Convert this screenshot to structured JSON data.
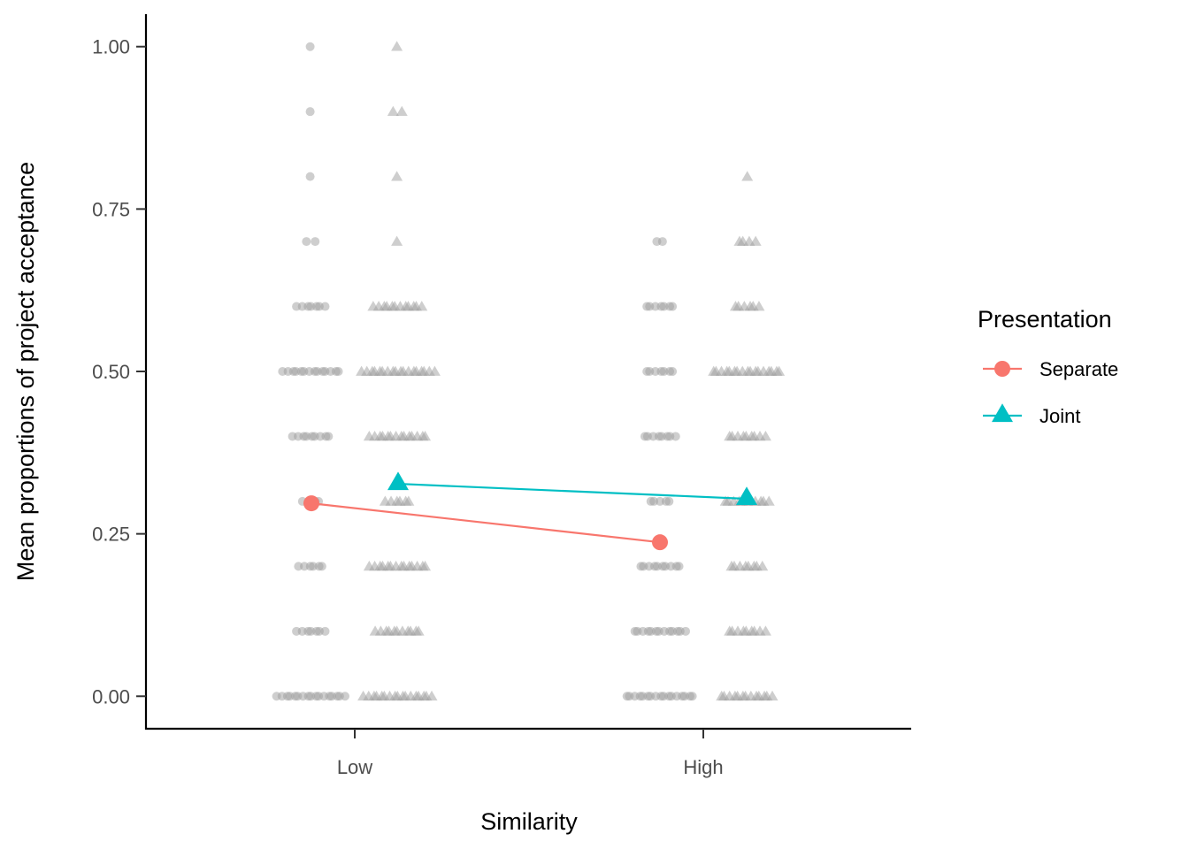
{
  "chart_data": {
    "type": "scatter",
    "title": "",
    "xlabel": "Similarity",
    "ylabel": "Mean proportions of project acceptance",
    "categories": [
      "Low",
      "High"
    ],
    "ylim": [
      -0.05,
      1.05
    ],
    "yticks": [
      "0.00",
      "0.25",
      "0.50",
      "0.75",
      "1.00"
    ],
    "grid": false,
    "legend": {
      "title": "Presentation",
      "placement": "right",
      "entries": [
        "Separate",
        "Joint"
      ]
    },
    "series": [
      {
        "name": "Separate",
        "color": "#F8766D",
        "marker": "circle",
        "values": [
          0.297,
          0.237
        ],
        "raw_points": {
          "Low": [
            [
              0.0,
              17
            ],
            [
              0.1,
              7
            ],
            [
              0.2,
              6
            ],
            [
              0.3,
              4
            ],
            [
              0.4,
              9
            ],
            [
              0.5,
              14
            ],
            [
              0.6,
              7
            ],
            [
              0.7,
              2
            ],
            [
              0.8,
              1
            ],
            [
              0.9,
              1
            ],
            [
              1.0,
              1
            ]
          ],
          "High": [
            [
              0.0,
              17
            ],
            [
              0.1,
              13
            ],
            [
              0.2,
              10
            ],
            [
              0.3,
              5
            ],
            [
              0.4,
              8
            ],
            [
              0.5,
              7
            ],
            [
              0.6,
              7
            ],
            [
              0.7,
              2
            ]
          ]
        }
      },
      {
        "name": "Joint",
        "color": "#00BFC4",
        "marker": "triangle",
        "values": [
          0.327,
          0.304
        ],
        "raw_points": {
          "Low": [
            [
              0.0,
              17
            ],
            [
              0.1,
              11
            ],
            [
              0.2,
              14
            ],
            [
              0.3,
              6
            ],
            [
              0.4,
              14
            ],
            [
              0.5,
              18
            ],
            [
              0.6,
              12
            ],
            [
              0.7,
              1
            ],
            [
              0.8,
              1
            ],
            [
              0.9,
              2
            ],
            [
              1.0,
              1
            ]
          ],
          "High": [
            [
              0.0,
              13
            ],
            [
              0.1,
              9
            ],
            [
              0.2,
              8
            ],
            [
              0.3,
              11
            ],
            [
              0.4,
              9
            ],
            [
              0.5,
              17
            ],
            [
              0.6,
              6
            ],
            [
              0.7,
              4
            ],
            [
              0.8,
              1
            ]
          ]
        }
      }
    ]
  }
}
